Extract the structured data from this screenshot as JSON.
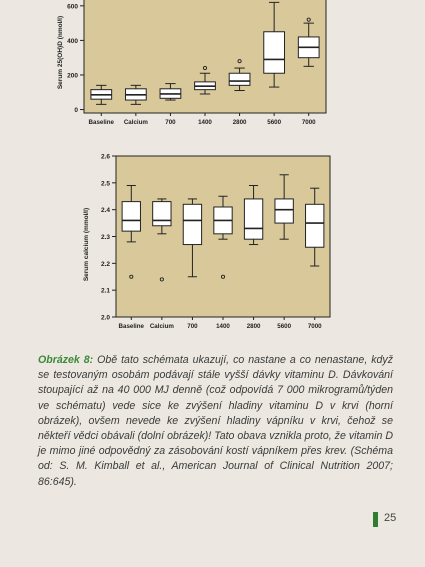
{
  "colors": {
    "plot_bg": "#d9c99a",
    "box_fill": "#ffffff",
    "line": "#222222",
    "caption_lead": "#3d8a3a",
    "page_mark": "#2f7d2f"
  },
  "chart_data": [
    {
      "type": "box",
      "ylabel": "Serum 25(OH)D (nmol/l)",
      "ylim": [
        -20,
        680
      ],
      "yticks": [
        0,
        200,
        400,
        600
      ],
      "categories": [
        "Baseline",
        "Calcium",
        "700",
        "1400",
        "2800",
        "5600",
        "7000"
      ],
      "boxes": [
        {
          "min": 30,
          "q1": 60,
          "median": 85,
          "q3": 115,
          "max": 140,
          "outliers": []
        },
        {
          "min": 30,
          "q1": 55,
          "median": 85,
          "q3": 120,
          "max": 140,
          "outliers": []
        },
        {
          "min": 55,
          "q1": 65,
          "median": 90,
          "q3": 120,
          "max": 150,
          "outliers": []
        },
        {
          "min": 90,
          "q1": 115,
          "median": 135,
          "q3": 160,
          "max": 210,
          "outliers": [
            240
          ]
        },
        {
          "min": 110,
          "q1": 140,
          "median": 165,
          "q3": 210,
          "max": 240,
          "outliers": [
            280
          ]
        },
        {
          "min": 130,
          "q1": 210,
          "median": 290,
          "q3": 450,
          "max": 620,
          "outliers": []
        },
        {
          "min": 250,
          "q1": 300,
          "median": 360,
          "q3": 420,
          "max": 500,
          "outliers": [
            520
          ]
        }
      ]
    },
    {
      "type": "box",
      "ylabel": "Serum calcium (mmol/l)",
      "ylim": [
        2.0,
        2.6
      ],
      "yticks": [
        2.0,
        2.1,
        2.2,
        2.3,
        2.4,
        2.5,
        2.6
      ],
      "ytick_labels": [
        "2.0",
        "2.1",
        "2.2",
        "2.3",
        "2.4",
        "2.5",
        "2.6"
      ],
      "categories": [
        "Baseline",
        "Calcium",
        "700",
        "1400",
        "2800",
        "5600",
        "7000"
      ],
      "boxes": [
        {
          "min": 2.28,
          "q1": 2.32,
          "median": 2.36,
          "q3": 2.43,
          "max": 2.49,
          "outliers": [
            2.15
          ]
        },
        {
          "min": 2.31,
          "q1": 2.34,
          "median": 2.36,
          "q3": 2.43,
          "max": 2.44,
          "outliers": [
            2.14
          ]
        },
        {
          "min": 2.15,
          "q1": 2.27,
          "median": 2.36,
          "q3": 2.42,
          "max": 2.44,
          "outliers": []
        },
        {
          "min": 2.29,
          "q1": 2.31,
          "median": 2.36,
          "q3": 2.41,
          "max": 2.45,
          "outliers": [
            2.15
          ]
        },
        {
          "min": 2.27,
          "q1": 2.29,
          "median": 2.33,
          "q3": 2.44,
          "max": 2.49,
          "outliers": []
        },
        {
          "min": 2.29,
          "q1": 2.35,
          "median": 2.4,
          "q3": 2.44,
          "max": 2.53,
          "outliers": []
        },
        {
          "min": 2.19,
          "q1": 2.26,
          "median": 2.35,
          "q3": 2.42,
          "max": 2.48,
          "outliers": []
        }
      ]
    }
  ],
  "caption": {
    "lead": "Obrázek 8:",
    "text": "Obě tato schémata ukazují, co nastane a co nenastane, když se testovaným osobám podávají stále vyšší dávky vitaminu D. Dávkování stoupající až na 40 000 MJ denně (což odpovídá 7 000 mikrogramů/týden ve schématu) vede sice ke zvýšení hladiny vitaminu D v krvi (horní obrázek), ovšem nevede ke zvýšení hladiny vápníku v krvi, čehož se někteří vědci obávali (dolní obrázek)! Tato obava vznikla proto, že vitamin D je mimo jiné odpovědný za zásobování kostí vápníkem přes krev. (Schéma od: S. M. Kimball et al., American Journal of Clinical Nutrition 2007; 86:645)."
  },
  "page_number": "25"
}
